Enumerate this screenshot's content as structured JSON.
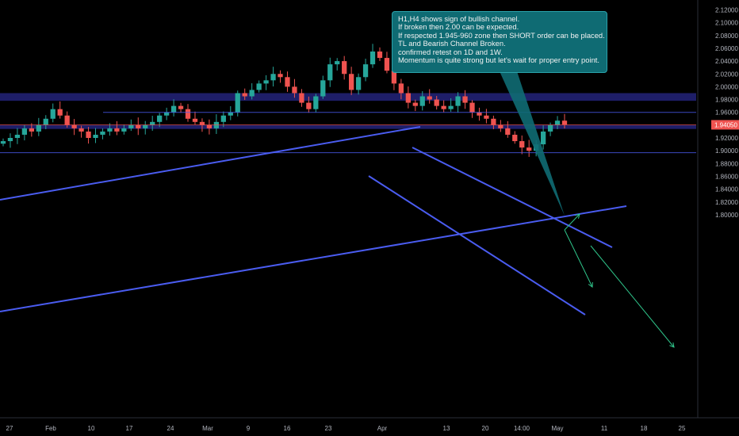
{
  "chart_data": {
    "type": "candlestick",
    "x_tick_labels": [
      "27",
      "Feb",
      "10",
      "17",
      "24",
      "Mar",
      "9",
      "16",
      "23",
      "Apr",
      "13",
      "20",
      "14:00",
      "May",
      "11",
      "18",
      "25"
    ],
    "y_tick_labels": [
      "2.12000",
      "2.10000",
      "2.08000",
      "2.06000",
      "2.04000",
      "2.02000",
      "2.00000",
      "1.98000",
      "1.96000",
      "1.94000",
      "1.92000",
      "1.90000",
      "1.88000",
      "1.86000",
      "1.84000",
      "1.82000",
      "1.80000"
    ],
    "ylim": [
      1.8,
      2.12
    ],
    "current_price": "1.94050",
    "close_series": [
      1.915,
      1.92,
      1.925,
      1.935,
      1.93,
      1.94,
      1.95,
      1.965,
      1.955,
      1.94,
      1.935,
      1.93,
      1.92,
      1.925,
      1.93,
      1.935,
      1.93,
      1.935,
      1.94,
      1.935,
      1.94,
      1.945,
      1.955,
      1.96,
      1.97,
      1.965,
      1.95,
      1.945,
      1.94,
      1.935,
      1.945,
      1.955,
      1.96,
      1.99,
      1.985,
      1.995,
      2.005,
      2.01,
      2.02,
      2.015,
      2.0,
      1.99,
      1.975,
      1.965,
      1.985,
      2.01,
      2.035,
      2.04,
      2.02,
      1.995,
      2.015,
      2.035,
      2.055,
      2.045,
      2.025,
      2.005,
      1.99,
      1.975,
      1.97,
      1.985,
      1.98,
      1.97,
      1.965,
      1.97,
      1.985,
      1.975,
      1.96,
      1.955,
      1.95,
      1.94,
      1.935,
      1.925,
      1.915,
      1.905,
      1.9,
      1.91,
      1.93,
      1.94,
      1.947,
      1.9405
    ],
    "horizontal_levels": [
      1.96,
      1.9405,
      1.897
    ],
    "zones": [
      [
        1.978,
        1.99
      ],
      [
        1.934,
        1.94
      ]
    ],
    "annotation": [
      "H1,H4 shows sign of bullish channel.",
      "If broken then 2.00 can be expected.",
      "If respected 1.945-960 zone then SHORT order can be placed.",
      "TL and Bearish Channel Broken.",
      "confirmed retest on 1D and 1W.",
      "Momentum is quite strong but let's wait for proper entry point."
    ],
    "colors": {
      "background": "#000000",
      "up": "#26a69a",
      "down": "#ef5350",
      "trendline": "#4a5cf0",
      "zone": "#23237a",
      "arrow": "#2fc48a",
      "note_bg": "#0f6b73",
      "price_badge": "#ef5350"
    }
  }
}
